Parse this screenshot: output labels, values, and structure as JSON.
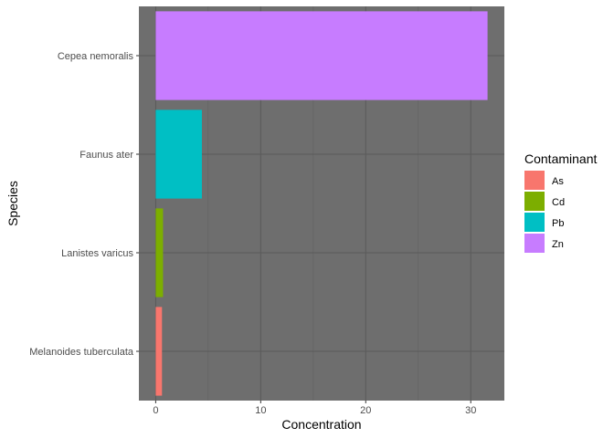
{
  "chart_data": {
    "type": "bar",
    "orientation": "horizontal",
    "xlabel": "Concentration",
    "ylabel": "Species",
    "xlim": [
      -1.6,
      33.2
    ],
    "xticks": [
      0,
      10,
      20,
      30
    ],
    "xtick_labels": [
      "0",
      "10",
      "20",
      "30"
    ],
    "categories": [
      "Cepea nemoralis",
      "Faunus ater",
      "Lanistes varicus",
      "Melanoides tuberculata"
    ],
    "values": [
      31.6,
      4.4,
      0.7,
      0.6
    ],
    "fill_by": [
      "Zn",
      "Pb",
      "Cd",
      "As"
    ],
    "legend": {
      "title": "Contaminant",
      "position": "right",
      "entries": [
        {
          "label": "As",
          "color": "#F8766D"
        },
        {
          "label": "Cd",
          "color": "#7CAE00"
        },
        {
          "label": "Pb",
          "color": "#00BFC4"
        },
        {
          "label": "Zn",
          "color": "#C77CFF"
        }
      ]
    },
    "panel_background": "#6e6e6e",
    "grid": true
  }
}
